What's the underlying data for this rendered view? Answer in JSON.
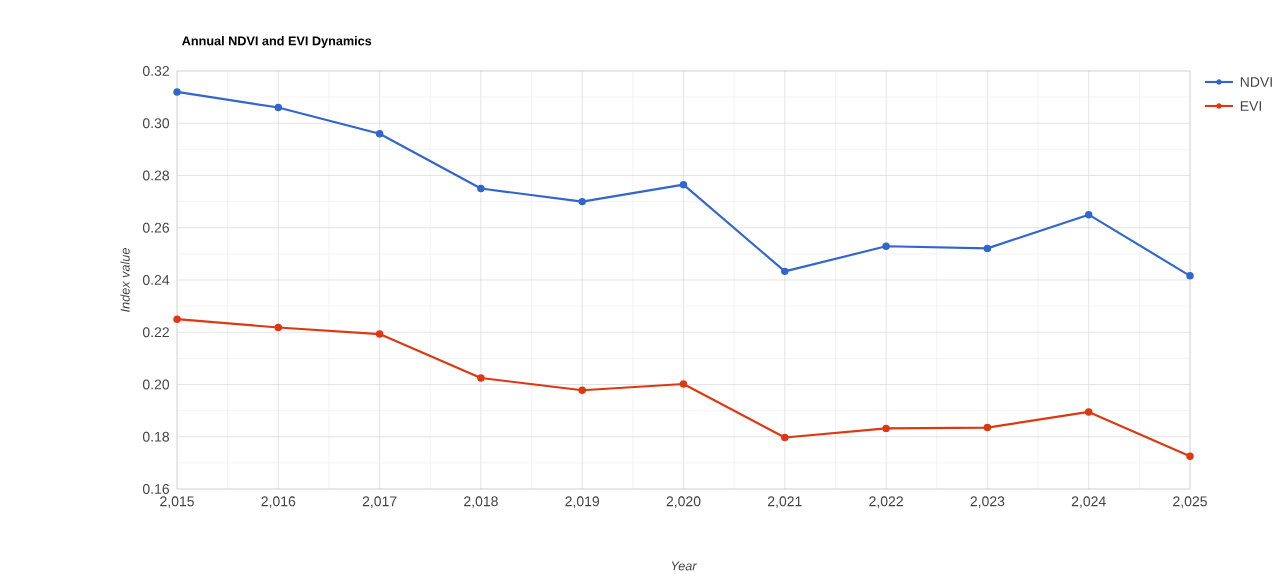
{
  "chart_data": {
    "type": "line",
    "title": "Annual NDVI and EVI Dynamics",
    "xlabel": "Year",
    "ylabel": "Index value",
    "x": [
      2015,
      2016,
      2017,
      2018,
      2019,
      2020,
      2021,
      2022,
      2023,
      2024,
      2025
    ],
    "series": [
      {
        "name": "NDVI",
        "color": "#3366cc",
        "values": [
          0.312,
          0.306,
          0.296,
          0.275,
          0.27,
          0.2765,
          0.2433,
          0.2529,
          0.2521,
          0.265,
          0.2416
        ]
      },
      {
        "name": "EVI",
        "color": "#dc3912",
        "values": [
          0.225,
          0.2218,
          0.2193,
          0.2025,
          0.1978,
          0.2002,
          0.1797,
          0.1832,
          0.1835,
          0.1895,
          0.1725
        ]
      }
    ],
    "xlim": [
      2015,
      2025
    ],
    "ylim": [
      0.16,
      0.32
    ],
    "xticks": [
      {
        "value": 2015,
        "label": "2,015"
      },
      {
        "value": 2016,
        "label": "2,016"
      },
      {
        "value": 2017,
        "label": "2,017"
      },
      {
        "value": 2018,
        "label": "2,018"
      },
      {
        "value": 2019,
        "label": "2,019"
      },
      {
        "value": 2020,
        "label": "2,020"
      },
      {
        "value": 2021,
        "label": "2,021"
      },
      {
        "value": 2022,
        "label": "2,022"
      },
      {
        "value": 2023,
        "label": "2,023"
      },
      {
        "value": 2024,
        "label": "2,024"
      },
      {
        "value": 2025,
        "label": "2,025"
      }
    ],
    "yticks": [
      {
        "value": 0.16,
        "label": "0.16"
      },
      {
        "value": 0.18,
        "label": "0.18"
      },
      {
        "value": 0.2,
        "label": "0.20"
      },
      {
        "value": 0.22,
        "label": "0.22"
      },
      {
        "value": 0.24,
        "label": "0.24"
      },
      {
        "value": 0.26,
        "label": "0.26"
      },
      {
        "value": 0.28,
        "label": "0.28"
      },
      {
        "value": 0.3,
        "label": "0.30"
      },
      {
        "value": 0.32,
        "label": "0.32"
      }
    ],
    "grid": true,
    "legend": "top right",
    "marker": "circle",
    "line_style": "solid"
  }
}
